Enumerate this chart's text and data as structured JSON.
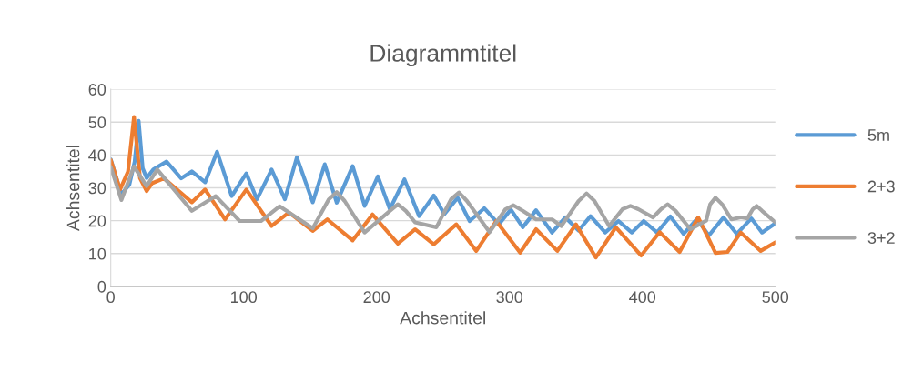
{
  "chart_data": {
    "type": "line",
    "title": "Diagrammtitel",
    "xlabel": "Achsentitel",
    "ylabel": "Achsentitel",
    "xlim": [
      0,
      500
    ],
    "xticks": [
      0,
      100,
      200,
      300,
      400,
      500
    ],
    "ylim": [
      0,
      60
    ],
    "yticks": [
      0,
      10,
      20,
      30,
      40,
      50,
      60
    ],
    "grid": "y",
    "legend": "right",
    "marker": "none",
    "line_style": "solid",
    "series": [
      {
        "name": "5m",
        "color": "#5b9bd5",
        "x": [
          0,
          8,
          14,
          18,
          21,
          24,
          27,
          32,
          42,
          53,
          61,
          71,
          80,
          91,
          102,
          110,
          121,
          131,
          140,
          152,
          161,
          170,
          182,
          191,
          201,
          210,
          221,
          232,
          243,
          251,
          261,
          270,
          281,
          292,
          301,
          310,
          320,
          332,
          342,
          352,
          361,
          372,
          382,
          392,
          401,
          411,
          421,
          431,
          441,
          450,
          461,
          471,
          482,
          490,
          500
        ],
        "values": [
          38.7,
          28,
          31,
          38,
          50.4,
          36,
          33,
          35.6,
          38,
          32.9,
          35,
          31.7,
          41,
          27.5,
          34.4,
          26.5,
          35.6,
          26.5,
          39.3,
          25.6,
          37.2,
          25.5,
          36.6,
          24.5,
          33.5,
          23.5,
          32.6,
          21.4,
          27.7,
          22,
          27,
          19.9,
          23.8,
          18.9,
          23.4,
          18,
          23.2,
          16.4,
          21,
          17,
          21.4,
          16.4,
          19.9,
          16.4,
          19.9,
          16.4,
          21.3,
          16,
          20.5,
          15.5,
          21,
          16,
          20.7,
          16.4,
          19.2
        ]
      },
      {
        "name": "2+3",
        "color": "#ed7d31",
        "x": [
          0,
          7,
          13,
          17.5,
          22,
          27,
          31,
          40,
          61,
          71,
          86,
          102,
          121,
          134,
          152,
          163,
          182,
          197,
          216,
          229,
          243,
          260,
          275,
          290,
          308,
          320,
          336,
          350,
          365,
          380,
          399,
          413,
          428,
          442,
          455,
          464,
          474,
          489,
          500
        ],
        "values": [
          38.5,
          29.5,
          35,
          51.6,
          33,
          29,
          31.4,
          32.9,
          25.6,
          29.5,
          20.4,
          29.5,
          18.4,
          22.5,
          16.9,
          20.4,
          14,
          21.9,
          13,
          17.4,
          12.8,
          18.9,
          10.8,
          19.9,
          10.3,
          17.4,
          10.8,
          18.9,
          8.8,
          18,
          9.4,
          16.5,
          10.5,
          21,
          10.2,
          10.5,
          16.4,
          10.8,
          13.4
        ]
      },
      {
        "name": "3+2",
        "color": "#a5a5a5",
        "x": [
          0,
          8,
          17.5,
          27,
          35,
          61,
          79,
          97,
          113,
          127,
          152,
          164,
          170,
          176,
          191,
          210,
          216,
          222,
          229,
          245,
          256,
          262,
          268,
          285,
          297,
          303,
          310,
          320,
          332,
          339,
          352,
          358,
          364,
          375,
          385,
          391,
          397,
          408,
          414,
          419,
          425,
          436,
          448,
          451,
          455,
          460,
          467,
          474,
          479,
          483,
          486,
          490,
          500
        ],
        "values": [
          36.4,
          26.3,
          36.5,
          30.5,
          35.6,
          23,
          27.5,
          19.9,
          19.9,
          24.4,
          17.7,
          26.5,
          28.7,
          26,
          16.4,
          23,
          25,
          23,
          19.5,
          18,
          26.5,
          28.6,
          26,
          16.5,
          23.5,
          24.7,
          23,
          20.4,
          20.4,
          18.4,
          26,
          28.3,
          26,
          18.4,
          23.5,
          24.5,
          23.5,
          21,
          23.5,
          25,
          23,
          17.4,
          20,
          25,
          27,
          25,
          20.4,
          21,
          20.7,
          23.5,
          24.5,
          23,
          19.5
        ]
      }
    ]
  }
}
